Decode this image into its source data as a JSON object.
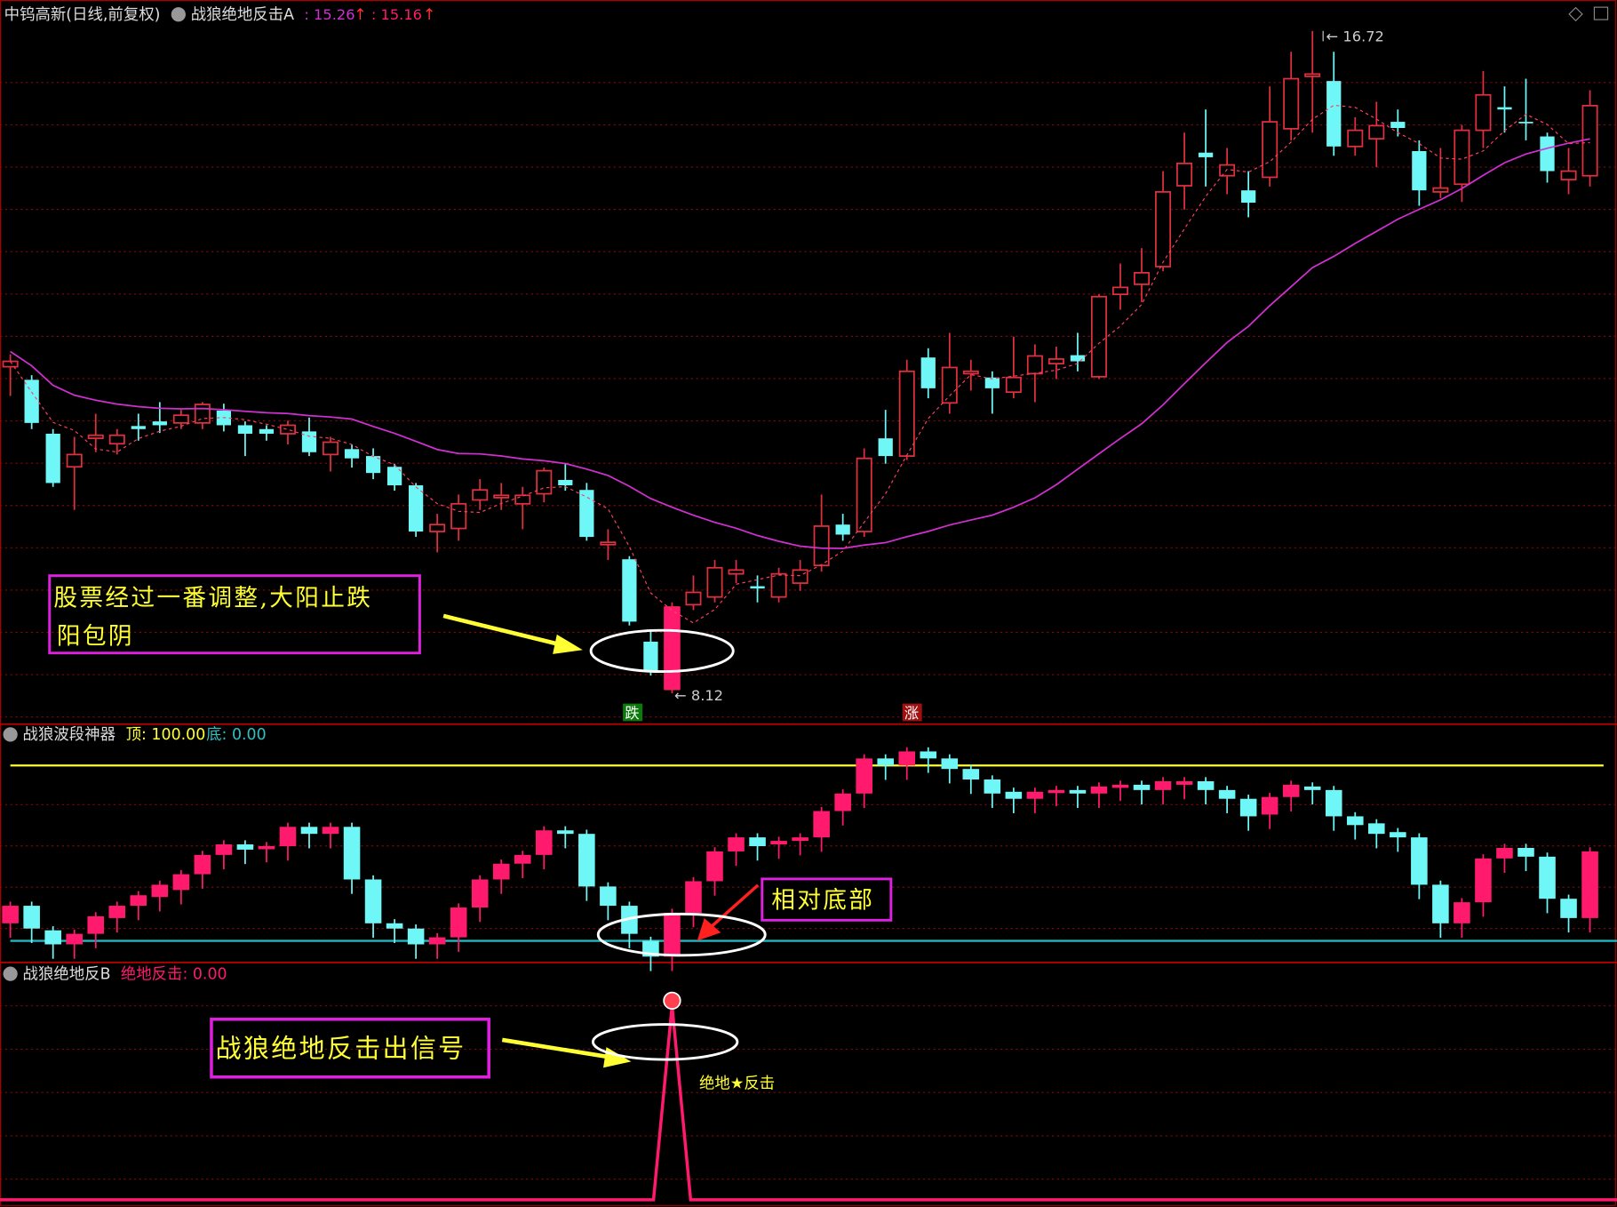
{
  "header": {
    "stock": "中钨高新(日线,前复权)",
    "indicator": "战狼绝地反击A",
    "value1": ": 15.26",
    "value2": ": 15.16",
    "arrow": "↑"
  },
  "main": {
    "high_label": "16.72",
    "low_label": "8.12",
    "price_high": 16.72,
    "price_low": 8.12,
    "marker_down": "跌",
    "marker_up": "涨",
    "annotation_line1": "股票经过一番调整,大阳止跌",
    "annotation_line2": "阳包阴",
    "candles": [
      [
        12.36,
        12.52,
        11.98,
        12.43
      ],
      [
        12.19,
        12.25,
        11.55,
        11.63
      ],
      [
        11.49,
        11.55,
        10.8,
        10.85
      ],
      [
        11.06,
        11.45,
        10.5,
        11.22
      ],
      [
        11.43,
        11.75,
        11.25,
        11.47
      ],
      [
        11.36,
        11.55,
        11.22,
        11.47
      ],
      [
        11.59,
        11.75,
        11.4,
        11.55
      ],
      [
        11.65,
        11.9,
        11.5,
        11.6
      ],
      [
        11.63,
        11.8,
        11.55,
        11.73
      ],
      [
        11.63,
        11.9,
        11.55,
        11.87
      ],
      [
        11.79,
        11.88,
        11.52,
        11.6
      ],
      [
        11.6,
        11.65,
        11.2,
        11.49
      ],
      [
        11.55,
        11.6,
        11.4,
        11.49
      ],
      [
        11.49,
        11.66,
        11.35,
        11.6
      ],
      [
        11.52,
        11.7,
        11.2,
        11.25
      ],
      [
        11.22,
        11.45,
        11.0,
        11.38
      ],
      [
        11.29,
        11.35,
        11.05,
        11.17
      ],
      [
        11.2,
        11.3,
        10.9,
        10.98
      ],
      [
        11.06,
        11.1,
        10.75,
        10.82
      ],
      [
        10.82,
        10.85,
        10.15,
        10.22
      ],
      [
        10.22,
        10.45,
        9.95,
        10.31
      ],
      [
        10.26,
        10.7,
        10.1,
        10.58
      ],
      [
        10.63,
        10.9,
        10.5,
        10.76
      ],
      [
        10.66,
        10.85,
        10.5,
        10.69
      ],
      [
        10.58,
        10.8,
        10.25,
        10.69
      ],
      [
        10.71,
        11.05,
        10.6,
        11.01
      ],
      [
        10.89,
        11.1,
        10.75,
        10.82
      ],
      [
        10.76,
        10.85,
        10.1,
        10.15
      ],
      [
        10.05,
        10.25,
        9.85,
        10.08
      ],
      [
        9.86,
        9.9,
        9.0,
        9.05
      ],
      [
        8.79,
        8.95,
        8.35,
        8.41
      ],
      [
        8.17,
        9.3,
        8.12,
        9.24
      ],
      [
        9.27,
        9.65,
        9.2,
        9.43
      ],
      [
        9.37,
        9.85,
        9.3,
        9.75
      ],
      [
        9.67,
        9.85,
        9.55,
        9.72
      ],
      [
        9.51,
        9.65,
        9.3,
        9.48
      ],
      [
        9.37,
        9.75,
        9.3,
        9.67
      ],
      [
        9.55,
        9.85,
        9.45,
        9.72
      ],
      [
        9.78,
        10.7,
        9.7,
        10.29
      ],
      [
        10.31,
        10.45,
        10.1,
        10.18
      ],
      [
        10.22,
        11.3,
        10.15,
        11.17
      ],
      [
        11.43,
        11.8,
        11.1,
        11.2
      ],
      [
        11.2,
        12.45,
        11.15,
        12.3
      ],
      [
        12.48,
        12.6,
        11.95,
        12.08
      ],
      [
        11.89,
        12.8,
        11.75,
        12.35
      ],
      [
        12.27,
        12.45,
        12.05,
        12.3
      ],
      [
        12.22,
        12.3,
        11.75,
        12.08
      ],
      [
        12.03,
        12.75,
        11.95,
        12.22
      ],
      [
        12.27,
        12.65,
        11.9,
        12.5
      ],
      [
        12.4,
        12.62,
        12.2,
        12.46
      ],
      [
        12.51,
        12.8,
        12.3,
        12.43
      ],
      [
        12.23,
        13.3,
        12.2,
        13.27
      ],
      [
        13.3,
        13.7,
        13.1,
        13.39
      ],
      [
        13.43,
        13.9,
        13.2,
        13.58
      ],
      [
        13.66,
        14.9,
        13.6,
        14.63
      ],
      [
        14.71,
        15.4,
        14.4,
        15.0
      ],
      [
        15.14,
        15.7,
        14.7,
        15.08
      ],
      [
        14.84,
        15.2,
        14.6,
        14.98
      ],
      [
        14.65,
        14.9,
        14.3,
        14.49
      ],
      [
        14.82,
        16.0,
        14.7,
        15.54
      ],
      [
        15.45,
        16.45,
        15.3,
        16.1
      ],
      [
        16.13,
        16.72,
        15.4,
        16.16
      ],
      [
        16.07,
        16.45,
        15.1,
        15.22
      ],
      [
        15.22,
        15.6,
        15.1,
        15.43
      ],
      [
        15.32,
        15.8,
        14.95,
        15.49
      ],
      [
        15.54,
        15.7,
        15.35,
        15.46
      ],
      [
        15.16,
        15.3,
        14.45,
        14.65
      ],
      [
        14.63,
        15.2,
        14.55,
        14.68
      ],
      [
        14.73,
        15.5,
        14.5,
        15.43
      ],
      [
        15.43,
        16.2,
        15.2,
        15.89
      ],
      [
        15.73,
        16.0,
        15.4,
        15.7
      ],
      [
        15.54,
        16.1,
        15.3,
        15.53
      ],
      [
        15.35,
        15.4,
        14.75,
        14.9
      ],
      [
        14.79,
        15.2,
        14.6,
        14.9
      ],
      [
        14.84,
        15.95,
        14.7,
        15.75
      ]
    ]
  },
  "panel2": {
    "name": "战狼波段神器",
    "top_label": "顶: 100.00",
    "bottom_label": "底: 0.00",
    "top": 100,
    "bottom": 0,
    "annotation": "相对底部",
    "bars": [
      [
        10,
        20
      ],
      [
        20,
        7
      ],
      [
        6,
        -2
      ],
      [
        -2,
        4
      ],
      [
        4,
        14
      ],
      [
        13,
        20
      ],
      [
        20,
        26
      ],
      [
        25,
        32
      ],
      [
        29,
        38
      ],
      [
        38,
        49
      ],
      [
        49,
        55
      ],
      [
        55,
        52
      ],
      [
        53,
        54
      ],
      [
        54,
        65
      ],
      [
        65,
        61
      ],
      [
        61,
        65
      ],
      [
        65,
        35
      ],
      [
        35,
        10
      ],
      [
        10,
        7
      ],
      [
        7,
        -2
      ],
      [
        -2,
        2
      ],
      [
        2,
        19
      ],
      [
        19,
        35
      ],
      [
        35,
        44
      ],
      [
        44,
        49
      ],
      [
        49,
        63
      ],
      [
        63,
        61
      ],
      [
        61,
        31
      ],
      [
        31,
        20
      ],
      [
        20,
        4
      ],
      [
        0,
        -9
      ],
      [
        -9,
        16
      ],
      [
        16,
        34
      ],
      [
        34,
        51
      ],
      [
        51,
        59
      ],
      [
        59,
        54
      ],
      [
        55,
        57
      ],
      [
        57,
        59
      ],
      [
        59,
        74
      ],
      [
        74,
        84
      ],
      [
        84,
        104
      ],
      [
        104,
        100
      ],
      [
        100,
        108
      ],
      [
        108,
        104
      ],
      [
        104,
        98
      ],
      [
        98,
        92
      ],
      [
        92,
        84
      ],
      [
        85,
        81
      ],
      [
        81,
        85
      ],
      [
        85,
        86
      ],
      [
        86,
        84
      ],
      [
        84,
        88
      ],
      [
        88,
        89
      ],
      [
        89,
        86
      ],
      [
        86,
        91
      ],
      [
        89,
        91
      ],
      [
        91,
        86
      ],
      [
        86,
        81
      ],
      [
        81,
        71
      ],
      [
        72,
        82
      ],
      [
        82,
        89
      ],
      [
        88,
        86
      ],
      [
        86,
        71
      ],
      [
        71,
        66
      ],
      [
        67,
        61
      ],
      [
        62,
        59
      ],
      [
        59,
        32
      ],
      [
        32,
        10
      ],
      [
        10,
        22
      ],
      [
        22,
        47
      ],
      [
        47,
        53
      ],
      [
        53,
        48
      ],
      [
        48,
        24
      ],
      [
        24,
        13
      ],
      [
        13,
        51
      ]
    ]
  },
  "panel3": {
    "name": "战狼绝地反B",
    "value_label": "绝地反击: 0.00",
    "signal_label": "绝地★反击",
    "annotation": "战狼绝地反击出信号",
    "signal_index": 31
  },
  "colors": {
    "up": "#ff1a6e",
    "down": "#6ff6f6",
    "ma": "#d030d0",
    "grid": "#7a0a0a",
    "yellow": "#ffff33",
    "annotation_border": "#e020e0"
  }
}
